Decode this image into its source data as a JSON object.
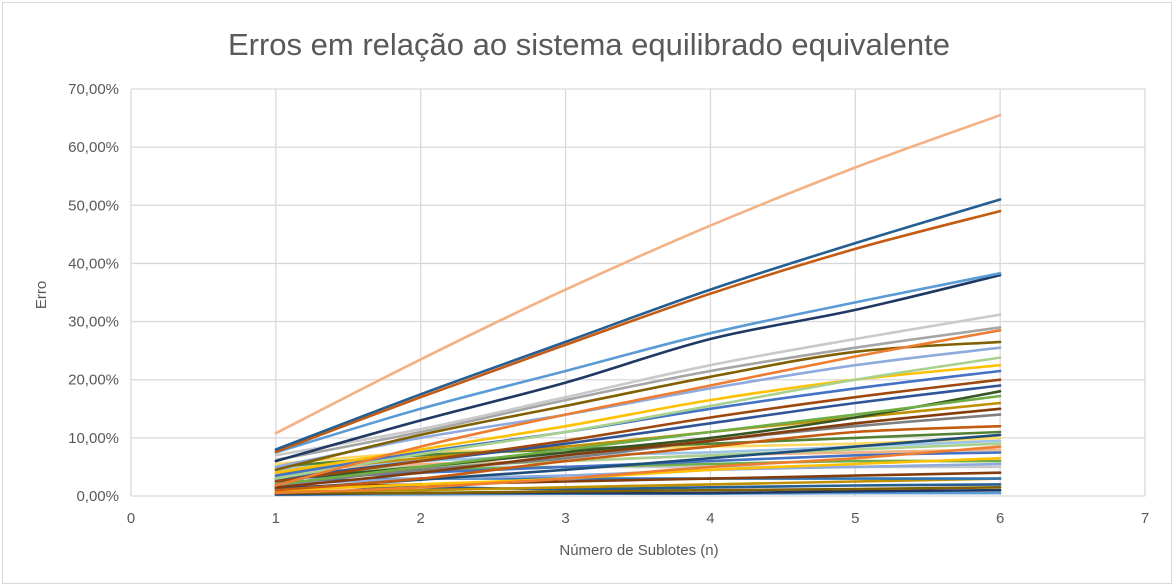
{
  "chart_data": {
    "type": "scatter",
    "variant": "smooth-lines-without-markers",
    "title": "Erros em relação ao sistema equilibrado equivalente",
    "xlabel": "Número de Sublotes (n)",
    "ylabel": "Erro",
    "xlim": [
      0,
      7
    ],
    "ylim": [
      0,
      0.7
    ],
    "xticks": [
      "0",
      "1",
      "2",
      "3",
      "4",
      "5",
      "6",
      "7"
    ],
    "yticks": [
      "0,00%",
      "10,00%",
      "20,00%",
      "30,00%",
      "40,00%",
      "50,00%",
      "60,00%",
      "70,00%"
    ],
    "grid": true,
    "legend": "none",
    "x": [
      1,
      2,
      3,
      4,
      5,
      6
    ],
    "series": [
      {
        "color": "#f4b183",
        "values": [
          0.108,
          0.235,
          0.355,
          0.465,
          0.565,
          0.655
        ]
      },
      {
        "color": "#255e91",
        "values": [
          0.08,
          0.175,
          0.265,
          0.355,
          0.435,
          0.51
        ]
      },
      {
        "color": "#c55a11",
        "values": [
          0.076,
          0.17,
          0.26,
          0.348,
          0.425,
          0.49
        ]
      },
      {
        "color": "#5b9bd5",
        "values": [
          0.075,
          0.15,
          0.215,
          0.28,
          0.333,
          0.383
        ]
      },
      {
        "color": "#1f3864",
        "values": [
          0.06,
          0.13,
          0.195,
          0.27,
          0.32,
          0.38
        ]
      },
      {
        "color": "#c9c9c9",
        "values": [
          0.07,
          0.115,
          0.17,
          0.225,
          0.27,
          0.312
        ]
      },
      {
        "color": "#a5a5a5",
        "values": [
          0.062,
          0.11,
          0.165,
          0.215,
          0.255,
          0.29
        ]
      },
      {
        "color": "#ed7d31",
        "values": [
          0.018,
          0.085,
          0.14,
          0.19,
          0.24,
          0.285
        ]
      },
      {
        "color": "#806000",
        "values": [
          0.045,
          0.105,
          0.155,
          0.205,
          0.248,
          0.265
        ]
      },
      {
        "color": "#8faadc",
        "values": [
          0.05,
          0.1,
          0.14,
          0.185,
          0.225,
          0.255
        ]
      },
      {
        "color": "#a9d18e",
        "values": [
          0.03,
          0.072,
          0.11,
          0.155,
          0.2,
          0.238
        ]
      },
      {
        "color": "#ffc000",
        "values": [
          0.04,
          0.08,
          0.12,
          0.165,
          0.2,
          0.225
        ]
      },
      {
        "color": "#4472c4",
        "values": [
          0.035,
          0.075,
          0.11,
          0.15,
          0.185,
          0.215
        ]
      },
      {
        "color": "#9e480e",
        "values": [
          0.025,
          0.06,
          0.095,
          0.135,
          0.17,
          0.2
        ]
      },
      {
        "color": "#2f5597",
        "values": [
          0.03,
          0.06,
          0.09,
          0.125,
          0.16,
          0.19
        ]
      },
      {
        "color": "#70ad47",
        "values": [
          0.02,
          0.05,
          0.08,
          0.11,
          0.14,
          0.172
        ]
      },
      {
        "color": "#375623",
        "values": [
          0.028,
          0.05,
          0.075,
          0.1,
          0.135,
          0.18
        ]
      },
      {
        "color": "#bf9000",
        "values": [
          0.04,
          0.065,
          0.085,
          0.11,
          0.135,
          0.16
        ]
      },
      {
        "color": "#843c0c",
        "values": [
          0.015,
          0.04,
          0.07,
          0.095,
          0.125,
          0.15
        ]
      },
      {
        "color": "#7f7f7f",
        "values": [
          0.02,
          0.045,
          0.065,
          0.095,
          0.12,
          0.14
        ]
      },
      {
        "color": "#c55a11",
        "values": [
          0.01,
          0.03,
          0.06,
          0.085,
          0.11,
          0.12
        ]
      },
      {
        "color": "#548235",
        "values": [
          0.05,
          0.07,
          0.08,
          0.09,
          0.1,
          0.11
        ]
      },
      {
        "color": "#1f4e79",
        "values": [
          0.012,
          0.028,
          0.045,
          0.065,
          0.085,
          0.105
        ]
      },
      {
        "color": "#ffd966",
        "values": [
          0.055,
          0.075,
          0.08,
          0.085,
          0.09,
          0.1
        ]
      },
      {
        "color": "#9dc3e6",
        "values": [
          0.045,
          0.06,
          0.07,
          0.075,
          0.085,
          0.095
        ]
      },
      {
        "color": "#a9d18e",
        "values": [
          0.035,
          0.05,
          0.06,
          0.07,
          0.08,
          0.09
        ]
      },
      {
        "color": "#ed7d31",
        "values": [
          0.005,
          0.015,
          0.03,
          0.05,
          0.065,
          0.085
        ]
      },
      {
        "color": "#f4b183",
        "values": [
          0.045,
          0.055,
          0.06,
          0.07,
          0.075,
          0.08
        ]
      },
      {
        "color": "#4472c4",
        "values": [
          0.03,
          0.04,
          0.05,
          0.06,
          0.07,
          0.075
        ]
      },
      {
        "color": "#ffc000",
        "values": [
          0.01,
          0.02,
          0.03,
          0.045,
          0.055,
          0.065
        ]
      },
      {
        "color": "#70ad47",
        "values": [
          0.035,
          0.045,
          0.05,
          0.055,
          0.06,
          0.06
        ]
      },
      {
        "color": "#8faadc",
        "values": [
          0.02,
          0.03,
          0.035,
          0.045,
          0.05,
          0.055
        ]
      },
      {
        "color": "#c9c9c9",
        "values": [
          0.05,
          0.05,
          0.05,
          0.05,
          0.05,
          0.05
        ]
      },
      {
        "color": "#843c0c",
        "values": [
          0.015,
          0.02,
          0.025,
          0.03,
          0.035,
          0.04
        ]
      },
      {
        "color": "#2e75b6",
        "values": [
          0.025,
          0.03,
          0.03,
          0.03,
          0.03,
          0.03
        ]
      },
      {
        "color": "#bf9000",
        "values": [
          0.008,
          0.01,
          0.015,
          0.02,
          0.025,
          0.03
        ]
      },
      {
        "color": "#255e91",
        "values": [
          0.015,
          0.015,
          0.012,
          0.015,
          0.018,
          0.02
        ]
      },
      {
        "color": "#806000",
        "values": [
          0.005,
          0.005,
          0.008,
          0.01,
          0.012,
          0.015
        ]
      },
      {
        "color": "#1f3864",
        "values": [
          0.003,
          0.005,
          0.005,
          0.005,
          0.008,
          0.01
        ]
      },
      {
        "color": "#5b9bd5",
        "values": [
          0.002,
          0.003,
          0.004,
          0.004,
          0.005,
          0.005
        ]
      }
    ]
  }
}
